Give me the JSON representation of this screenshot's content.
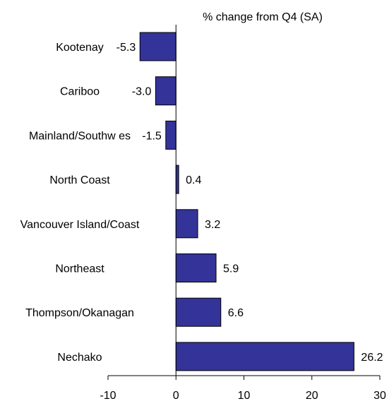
{
  "chart_data": {
    "type": "bar",
    "orientation": "horizontal",
    "title": "% change from Q4 (SA)",
    "categories": [
      "Kootenay",
      "Cariboo",
      "Mainland/Southw es",
      "North Coast",
      "Vancouver Island/Coast",
      "Northeast",
      "Thompson/Okanagan",
      "Nechako"
    ],
    "values": [
      -5.3,
      -3.0,
      -1.5,
      0.4,
      3.2,
      5.9,
      6.6,
      26.2
    ],
    "value_labels": [
      "-5.3",
      "-3.0",
      "-1.5",
      "0.4",
      "3.2",
      "5.9",
      "6.6",
      "26.2"
    ],
    "xlim": [
      -10,
      30
    ],
    "xticks": [
      -10,
      0,
      10,
      20,
      30
    ],
    "xtick_labels": [
      "-10",
      "0",
      "10",
      "20",
      "30"
    ],
    "grid": false,
    "bar_color": "#333399",
    "bar_edge_color": "#000000"
  }
}
